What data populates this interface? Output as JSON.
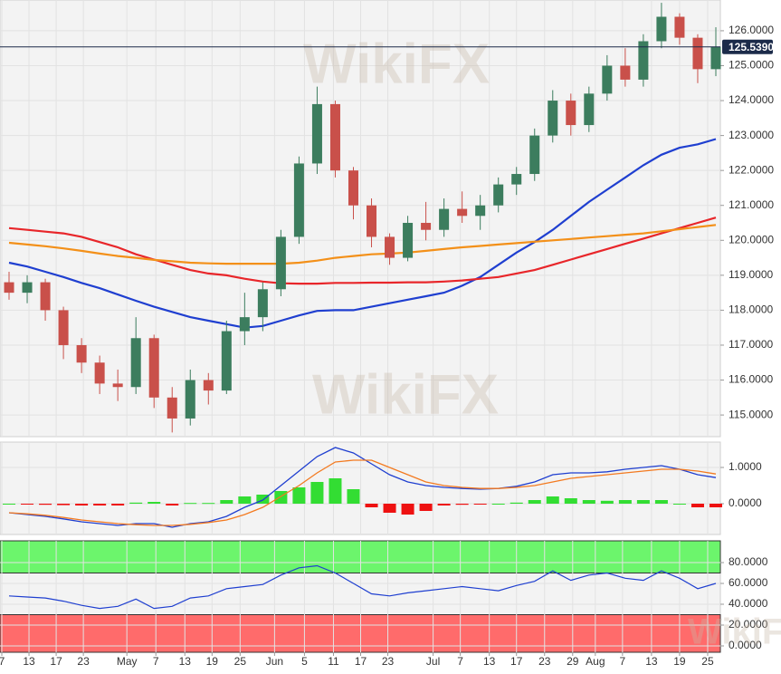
{
  "chart_data": [
    {
      "type": "candlestick",
      "watermark": "WikiFX",
      "x": [
        1,
        3,
        5,
        7,
        9,
        11,
        13,
        15,
        17,
        19,
        21,
        23,
        25,
        27,
        29,
        31,
        33,
        35,
        37,
        39,
        41,
        43,
        45,
        47,
        49,
        51,
        53,
        55,
        57,
        59,
        61,
        63,
        65,
        67,
        69,
        71,
        73,
        75,
        77,
        79
      ],
      "open": [
        118.8,
        118.5,
        118.8,
        118.0,
        117.0,
        116.5,
        115.9,
        115.8,
        117.2,
        115.5,
        114.9,
        116.0,
        115.7,
        117.4,
        117.8,
        118.6,
        120.1,
        122.2,
        123.9,
        122.0,
        121.0,
        120.1,
        119.5,
        120.5,
        120.3,
        120.9,
        120.7,
        121.0,
        121.6,
        121.9,
        123.0,
        124.0,
        123.3,
        124.2,
        125.0,
        124.6,
        125.7,
        126.4,
        125.8,
        124.9
      ],
      "high": [
        119.1,
        119.0,
        118.9,
        118.1,
        117.2,
        116.7,
        116.3,
        117.8,
        117.3,
        115.8,
        116.3,
        116.2,
        117.7,
        118.5,
        118.8,
        120.3,
        122.4,
        124.4,
        124.0,
        122.1,
        121.2,
        120.2,
        120.7,
        121.1,
        121.2,
        121.4,
        121.3,
        121.8,
        122.1,
        123.2,
        124.3,
        124.2,
        124.4,
        125.3,
        125.5,
        125.9,
        126.8,
        126.5,
        125.9,
        126.1
      ],
      "low": [
        118.3,
        118.2,
        117.7,
        116.6,
        116.2,
        115.6,
        115.4,
        115.6,
        115.2,
        114.5,
        114.7,
        115.3,
        115.6,
        117.0,
        117.4,
        118.4,
        119.9,
        121.9,
        121.8,
        120.6,
        119.8,
        119.3,
        119.4,
        120.0,
        120.1,
        120.5,
        120.3,
        120.8,
        121.3,
        121.7,
        122.8,
        123.0,
        123.1,
        124.0,
        124.4,
        124.4,
        125.5,
        125.6,
        124.5,
        124.7
      ],
      "close": [
        118.5,
        118.8,
        118.0,
        117.0,
        116.5,
        115.9,
        115.8,
        117.2,
        115.5,
        114.9,
        116.0,
        115.7,
        117.4,
        117.8,
        118.6,
        120.1,
        122.2,
        123.9,
        122.0,
        121.0,
        120.1,
        119.5,
        120.5,
        120.3,
        120.9,
        120.7,
        121.0,
        121.6,
        121.9,
        123.0,
        124.0,
        123.3,
        124.2,
        125.0,
        124.6,
        125.7,
        126.4,
        125.8,
        124.9,
        125.54
      ],
      "up_color": "#3c7d5e",
      "down_color": "#c9504a",
      "series": [
        {
          "color": "#1f3fd0",
          "values": [
            119.36,
            119.25,
            119.1,
            118.95,
            118.78,
            118.63,
            118.45,
            118.27,
            118.1,
            117.95,
            117.8,
            117.7,
            117.6,
            117.5,
            117.55,
            117.7,
            117.85,
            117.98,
            118.0,
            118.0,
            118.1,
            118.2,
            118.3,
            118.4,
            118.5,
            118.7,
            118.95,
            119.3,
            119.65,
            119.95,
            120.3,
            120.7,
            121.1,
            121.45,
            121.8,
            122.15,
            122.45,
            122.65,
            122.75,
            122.9
          ]
        },
        {
          "color": "#e8262a",
          "values": [
            120.35,
            120.3,
            120.25,
            120.2,
            120.1,
            119.95,
            119.8,
            119.6,
            119.45,
            119.3,
            119.15,
            119.05,
            119.0,
            118.9,
            118.82,
            118.77,
            118.76,
            118.76,
            118.78,
            118.78,
            118.79,
            118.79,
            118.8,
            118.8,
            118.82,
            118.85,
            118.9,
            118.95,
            119.05,
            119.15,
            119.3,
            119.45,
            119.6,
            119.75,
            119.9,
            120.05,
            120.2,
            120.35,
            120.5,
            120.65
          ]
        },
        {
          "color": "#f39019",
          "values": [
            119.93,
            119.88,
            119.83,
            119.77,
            119.7,
            119.62,
            119.55,
            119.5,
            119.44,
            119.4,
            119.36,
            119.34,
            119.33,
            119.33,
            119.33,
            119.33,
            119.36,
            119.42,
            119.5,
            119.55,
            119.6,
            119.62,
            119.65,
            119.7,
            119.75,
            119.8,
            119.84,
            119.88,
            119.92,
            119.96,
            120.0,
            120.04,
            120.08,
            120.12,
            120.16,
            120.2,
            120.26,
            120.32,
            120.38,
            120.44
          ]
        }
      ],
      "last_price": {
        "value": 125.539,
        "label": "125.5390"
      },
      "last_color": "#1c2b4a",
      "xlim": [
        0,
        79.5
      ],
      "ylim": [
        114.38,
        126.88
      ],
      "yticks": [
        {
          "value": 115,
          "label": "115.0000"
        },
        {
          "value": 116,
          "label": "116.0000"
        },
        {
          "value": 117,
          "label": "117.0000"
        },
        {
          "value": 118,
          "label": "118.0000"
        },
        {
          "value": 119,
          "label": "119.0000"
        },
        {
          "value": 120,
          "label": "120.0000"
        },
        {
          "value": 121,
          "label": "121.0000"
        },
        {
          "value": 122,
          "label": "122.0000"
        },
        {
          "value": 123,
          "label": "123.0000"
        },
        {
          "value": 124,
          "label": "124.0000"
        },
        {
          "value": 125,
          "label": "125.0000"
        },
        {
          "value": 126,
          "label": "126.0000"
        }
      ],
      "grid": true
    },
    {
      "type": "macd",
      "x": [
        1,
        3,
        5,
        7,
        9,
        11,
        13,
        15,
        17,
        19,
        21,
        23,
        25,
        27,
        29,
        31,
        33,
        35,
        37,
        39,
        41,
        43,
        45,
        47,
        49,
        51,
        53,
        55,
        57,
        59,
        61,
        63,
        65,
        67,
        69,
        71,
        73,
        75,
        77,
        79
      ],
      "histogram": {
        "up_color": "#33dd33",
        "down_color": "#ee1111",
        "values": [
          0,
          -0.02,
          -0.03,
          -0.04,
          -0.05,
          -0.05,
          -0.05,
          0.03,
          0.05,
          -0.05,
          0.02,
          0.02,
          0.1,
          0.2,
          0.25,
          0.35,
          0.45,
          0.6,
          0.7,
          0.4,
          -0.1,
          -0.25,
          -0.3,
          -0.2,
          -0.05,
          -0.03,
          -0.02,
          0,
          0.03,
          0.1,
          0.2,
          0.15,
          0.1,
          0.08,
          0.1,
          0.1,
          0.1,
          0,
          -0.1,
          -0.1
        ]
      },
      "series": [
        {
          "color": "#1f3fd0",
          "values": [
            -0.25,
            -0.3,
            -0.35,
            -0.42,
            -0.5,
            -0.55,
            -0.6,
            -0.55,
            -0.55,
            -0.65,
            -0.55,
            -0.5,
            -0.35,
            -0.1,
            0.1,
            0.5,
            0.9,
            1.3,
            1.55,
            1.4,
            1.1,
            0.8,
            0.6,
            0.5,
            0.45,
            0.42,
            0.4,
            0.42,
            0.48,
            0.6,
            0.8,
            0.85,
            0.85,
            0.88,
            0.95,
            1.0,
            1.05,
            0.95,
            0.8,
            0.72
          ]
        },
        {
          "color": "#f37a20",
          "values": [
            -0.25,
            -0.28,
            -0.32,
            -0.38,
            -0.45,
            -0.5,
            -0.55,
            -0.58,
            -0.6,
            -0.6,
            -0.57,
            -0.52,
            -0.45,
            -0.3,
            -0.1,
            0.2,
            0.5,
            0.85,
            1.15,
            1.2,
            1.2,
            1.0,
            0.8,
            0.6,
            0.5,
            0.45,
            0.42,
            0.42,
            0.45,
            0.5,
            0.6,
            0.7,
            0.75,
            0.8,
            0.85,
            0.9,
            0.95,
            0.95,
            0.9,
            0.82
          ]
        }
      ],
      "xlim": [
        0,
        79.5
      ],
      "ylim": [
        -0.85,
        1.7
      ],
      "yticks": [
        {
          "value": 0,
          "label": "0.0000"
        },
        {
          "value": 1,
          "label": "1.0000"
        }
      ],
      "grid": true
    },
    {
      "type": "rsi",
      "watermark": "WikiFX",
      "x": [
        1,
        3,
        5,
        7,
        9,
        11,
        13,
        15,
        17,
        19,
        21,
        23,
        25,
        27,
        29,
        31,
        33,
        35,
        37,
        39,
        41,
        43,
        45,
        47,
        49,
        51,
        53,
        55,
        57,
        59,
        61,
        63,
        65,
        67,
        69,
        71,
        73,
        75,
        77,
        79
      ],
      "values": [
        48,
        47,
        46,
        43,
        39,
        36,
        38,
        45,
        36,
        38,
        46,
        48,
        55,
        57,
        59,
        68,
        75,
        77,
        70,
        60,
        50,
        48,
        51,
        53,
        55,
        57,
        55,
        53,
        58,
        62,
        72,
        63,
        68,
        70,
        65,
        63,
        72,
        65,
        55,
        60
      ],
      "color": "#1f3fd0",
      "bands": [
        {
          "range": [
            70,
            100.9
          ],
          "color": "#6cf56c"
        },
        {
          "range": [
            -6.1,
            30
          ],
          "color": "#ff6b6b"
        }
      ],
      "xlim": [
        0,
        79.5
      ],
      "ylim": [
        -6.1,
        100.9
      ],
      "yticks": [
        {
          "value": 0,
          "label": "0.0000"
        },
        {
          "value": 20,
          "label": "20.0000"
        },
        {
          "value": 40,
          "label": "40.0000"
        },
        {
          "value": 60,
          "label": "60.0000"
        },
        {
          "value": 80,
          "label": "80.0000"
        }
      ],
      "xticks": [
        {
          "value": 0.2,
          "label": "7"
        },
        {
          "value": 3.2,
          "label": "13"
        },
        {
          "value": 6.2,
          "label": "17"
        },
        {
          "value": 9.2,
          "label": "23"
        },
        {
          "value": 14.0,
          "label": "May"
        },
        {
          "value": 17.2,
          "label": "7"
        },
        {
          "value": 20.4,
          "label": "13"
        },
        {
          "value": 23.4,
          "label": "19"
        },
        {
          "value": 26.5,
          "label": "25"
        },
        {
          "value": 30.3,
          "label": "Jun"
        },
        {
          "value": 33.6,
          "label": "5"
        },
        {
          "value": 36.8,
          "label": "11"
        },
        {
          "value": 39.8,
          "label": "17"
        },
        {
          "value": 42.8,
          "label": "23"
        },
        {
          "value": 47.8,
          "label": "Jul"
        },
        {
          "value": 50.8,
          "label": "7"
        },
        {
          "value": 54.0,
          "label": "13"
        },
        {
          "value": 57.0,
          "label": "17"
        },
        {
          "value": 60.1,
          "label": "23"
        },
        {
          "value": 63.2,
          "label": "29"
        },
        {
          "value": 65.7,
          "label": "Aug"
        },
        {
          "value": 68.7,
          "label": "7"
        },
        {
          "value": 71.9,
          "label": "13"
        },
        {
          "value": 75.0,
          "label": "19"
        },
        {
          "value": 78.1,
          "label": "25"
        }
      ],
      "grid": true
    }
  ]
}
